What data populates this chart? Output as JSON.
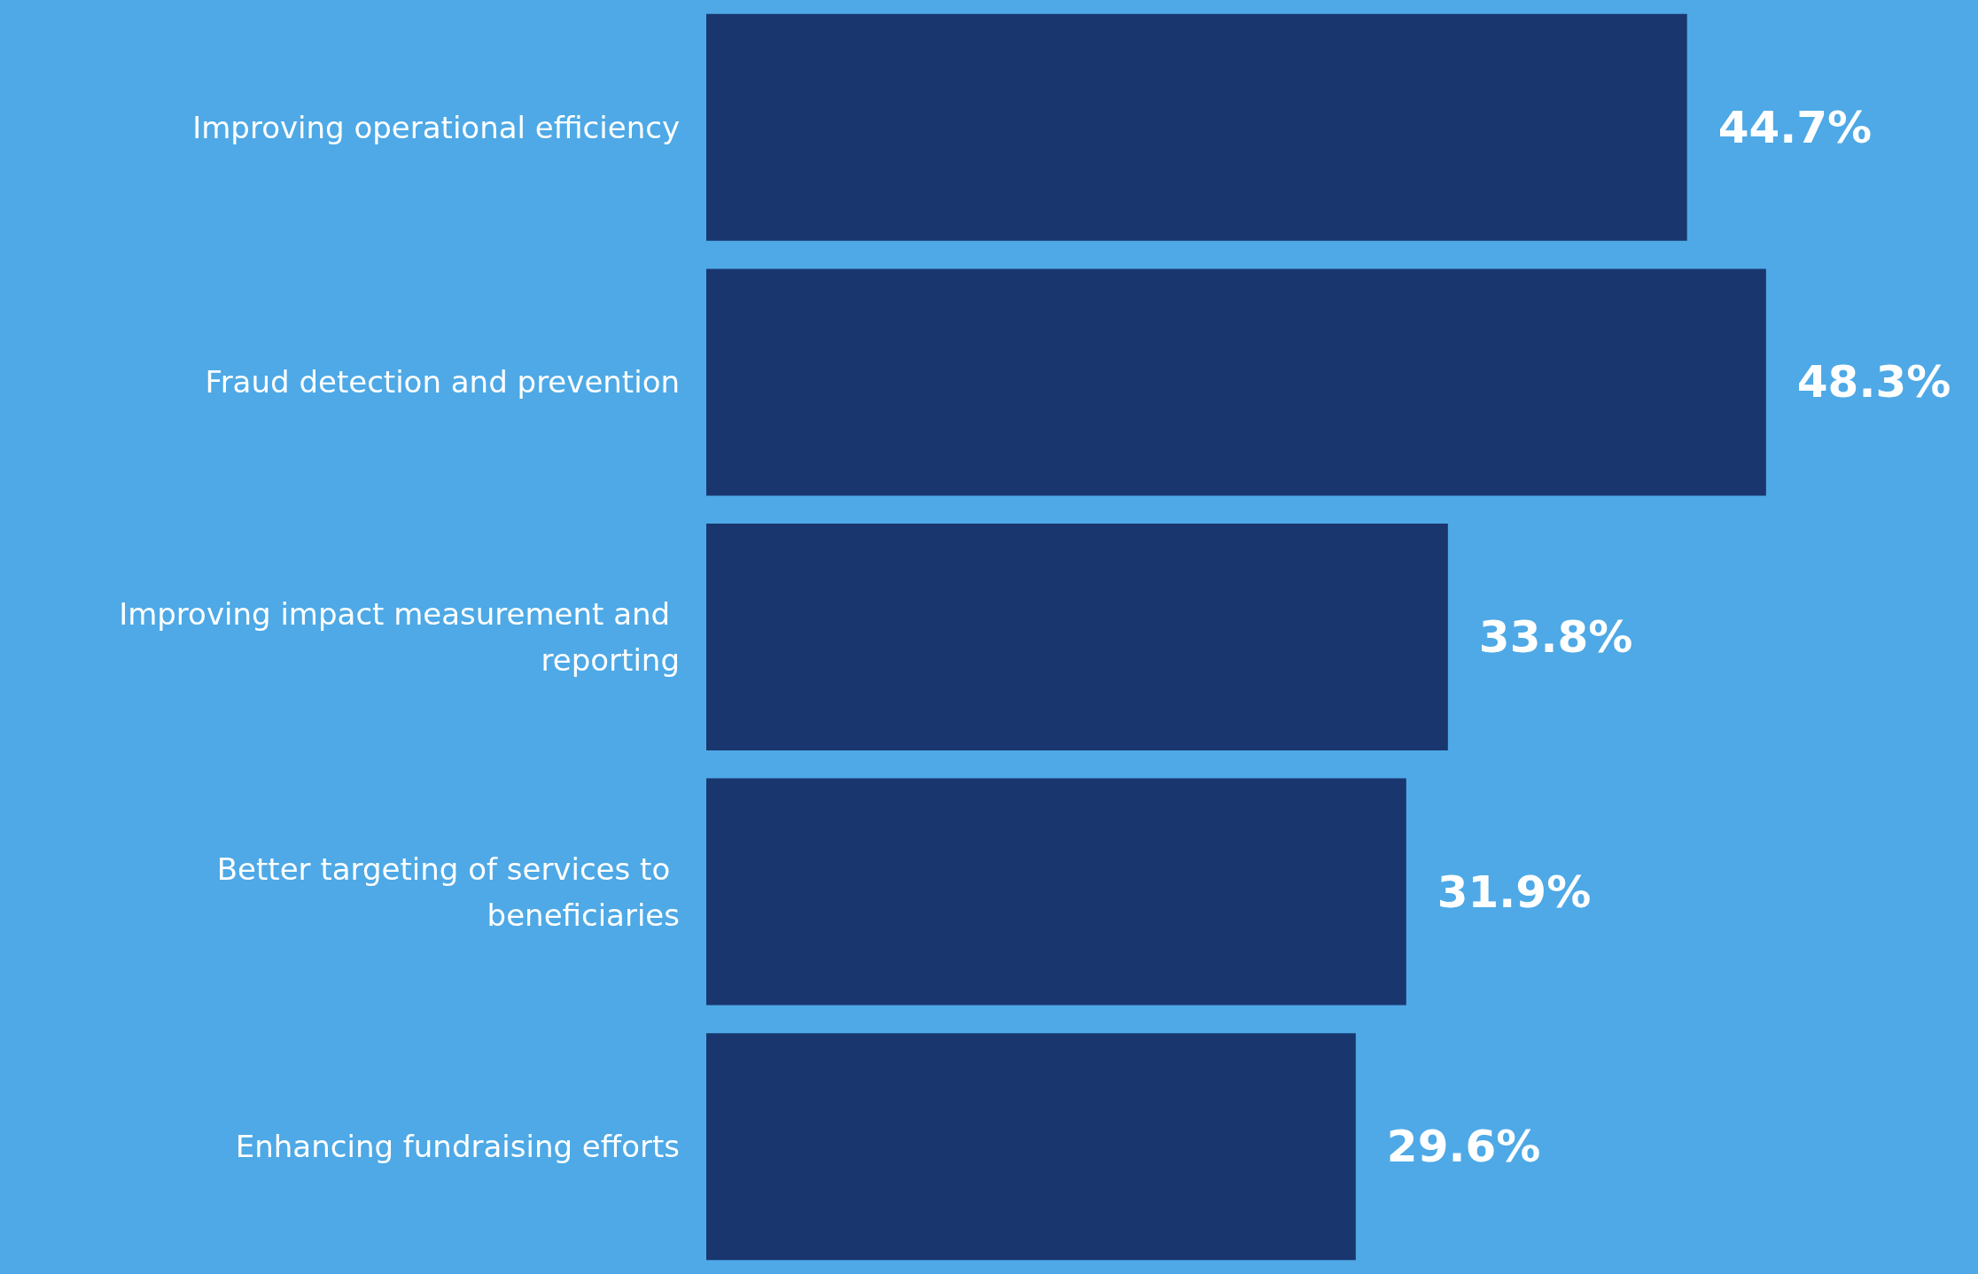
{
  "chart_data": {
    "type": "bar",
    "orientation": "horizontal",
    "categories": [
      "Improving operational efficiency",
      "Fraud detection and prevention",
      "Improving impact measurement and reporting",
      "Better targeting of services to beneficiaries",
      "Enhancing fundraising efforts"
    ],
    "values": [
      44.7,
      48.3,
      33.8,
      31.9,
      29.6
    ],
    "value_labels": [
      "44.7%",
      "48.3%",
      "33.8%",
      "31.9%",
      "29.6%"
    ],
    "color": "#19366f"
  }
}
